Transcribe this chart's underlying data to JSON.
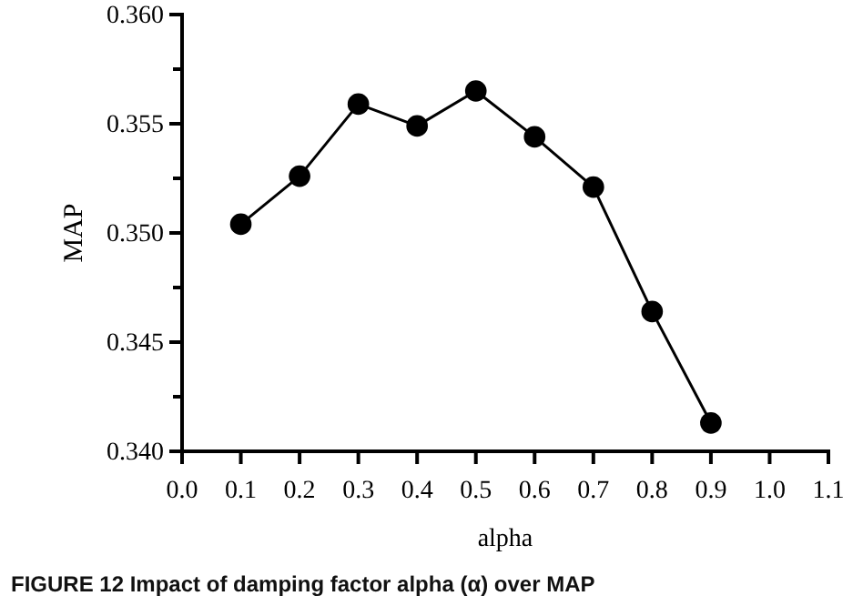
{
  "chart_data": {
    "type": "line",
    "xlabel": "alpha",
    "ylabel": "MAP",
    "x": [
      0.1,
      0.2,
      0.3,
      0.4,
      0.5,
      0.6,
      0.7,
      0.8,
      0.9
    ],
    "series": [
      {
        "color": "#000000",
        "values": [
          0.3504,
          0.3526,
          0.3559,
          0.3549,
          0.3565,
          0.3544,
          0.3521,
          0.3464,
          0.3413
        ]
      }
    ],
    "xlim": [
      0,
      1.1
    ],
    "xticks": [
      {
        "value": 0,
        "label": "0.0"
      },
      0.1,
      0.2,
      0.3,
      0.4,
      0.5,
      0.6,
      0.7,
      0.8,
      0.9,
      {
        "value": 1,
        "label": "1.0"
      },
      1.1
    ],
    "ylim": [
      0.34,
      0.36
    ],
    "yticks": [
      {
        "value": 0.34,
        "label": "0.340"
      },
      {
        "value": 0.3425,
        "label": null
      },
      0.345,
      {
        "value": 0.3475,
        "label": null
      },
      {
        "value": 0.35,
        "label": "0.350"
      },
      {
        "value": 0.3525,
        "label": null
      },
      0.355,
      {
        "value": 0.3575,
        "label": null
      },
      {
        "value": 0.36,
        "label": "0.360"
      }
    ],
    "grid": false,
    "marker": "circle",
    "line_style": "solid",
    "annotations": [
      "FIGURE 12  Impact of damping factor alpha (α) over MAP"
    ]
  }
}
